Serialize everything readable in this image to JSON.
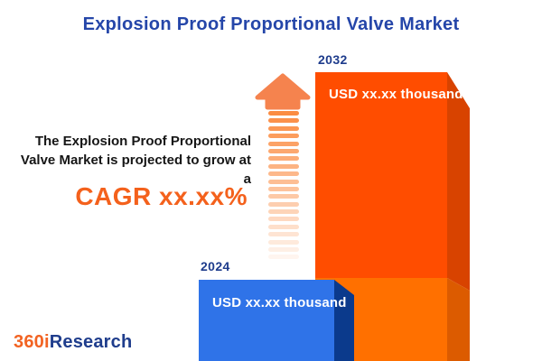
{
  "title": "Explosion Proof Proportional Valve Market",
  "annotation": {
    "line1": "The Explosion Proof Proportional",
    "line2": "Valve Market is projected to grow at",
    "line3": "a",
    "cagr": "CAGR xx.xx%"
  },
  "chart_data": {
    "type": "bar",
    "categories": [
      "2024",
      "2032"
    ],
    "values": [
      "xx.xx",
      "xx.xx"
    ],
    "value_labels": [
      "USD xx.xx thousand",
      "USD xx.xx thousand"
    ],
    "unit": "USD thousand",
    "title": "Explosion Proof Proportional Valve Market",
    "xlabel": "",
    "ylabel": "",
    "legend": false,
    "axes_visible": false,
    "growth_annotation": "The Explosion Proof Proportional Valve Market is projected to grow at a CAGR xx.xx%"
  },
  "bars": {
    "b2024": {
      "year": "2024",
      "value_label": "USD xx.xx thousand"
    },
    "b2032": {
      "year": "2032",
      "value_label": "USD xx.xx thousand"
    }
  },
  "logo": {
    "part1": "360i",
    "part2": "Research"
  },
  "colors": {
    "background": "#FFFFFF",
    "title_blue": "#2546A9",
    "year_label_blue": "#1E3C8C",
    "body_text": "#161616",
    "cagr_orange": "#F4611C",
    "bar_2032_front_top": "#FF4D00",
    "bar_2032_front_bottom": "#FF7000",
    "bar_2032_side_top": "#D84300",
    "bar_2032_side_bottom": "#DC5B00",
    "bar_2024_front": "#2F73E8",
    "bar_2024_side": "#0B3A8C",
    "arrow_head": "#F5834E",
    "arrow_stripe": "#FB8C42",
    "logo_orange": "#F26322",
    "logo_blue": "#1F3D8C"
  },
  "arrow": {
    "stripe_count": 20
  }
}
